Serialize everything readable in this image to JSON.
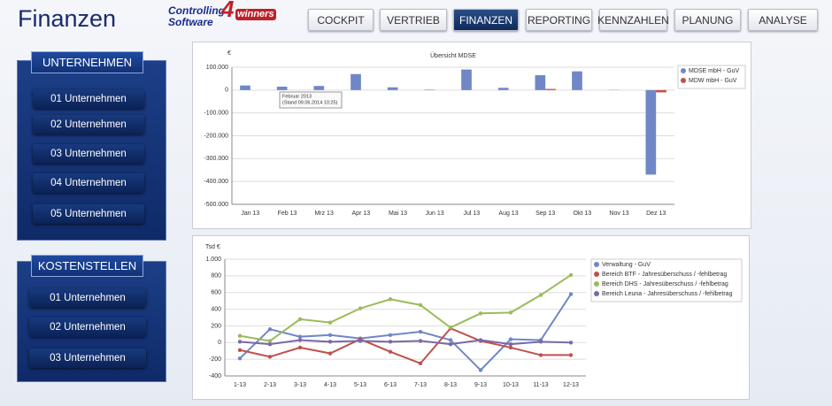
{
  "header": {
    "title": "Finanzen",
    "logo": {
      "line1": "Controlling",
      "line2": "Software",
      "number": "4",
      "suffix": "winners"
    }
  },
  "nav": [
    "COCKPIT",
    "VERTRIEB",
    "FINANZEN",
    "REPORTING",
    "KENNZAHLEN",
    "PLANUNG",
    "ANALYSE"
  ],
  "active_nav": "FINANZEN",
  "panels": [
    {
      "title": "UNTERNEHMEN",
      "items": [
        "01 Unternehmen",
        "02 Unternehmen",
        "03 Unternehmen",
        "04 Unternehmen",
        "05 Unternehmen"
      ]
    },
    {
      "title": "KOSTENSTELLEN",
      "items": [
        "01 Unternehmen",
        "02 Unternehmen",
        "03 Unternehmen"
      ]
    }
  ],
  "chart_data": [
    {
      "type": "bar",
      "title": "Übersicht MDSE",
      "y_label": "€",
      "categories": [
        "Jan 13",
        "Feb 13",
        "Mrz 13",
        "Apr 13",
        "Mai 13",
        "Jun 13",
        "Jul 13",
        "Aug 13",
        "Sep 13",
        "Okt 13",
        "Nov 13",
        "Dez 13"
      ],
      "series": [
        {
          "name": "MDSE mbH - GuV",
          "color": "#6f87c6",
          "values": [
            20000,
            15000,
            18000,
            70000,
            12000,
            2000,
            90000,
            10000,
            65000,
            82000,
            1000,
            -370000
          ]
        },
        {
          "name": "MDW mbH - GuV",
          "color": "#c0504d",
          "values": [
            0,
            0,
            0,
            0,
            0,
            0,
            0,
            0,
            5000,
            0,
            0,
            -10000
          ]
        }
      ],
      "ylim": [
        -500000,
        100000
      ],
      "yticks": [
        {
          "value": 100000,
          "label": "100.000"
        },
        0,
        {
          "value": -100000,
          "label": "-100.000"
        },
        {
          "value": -200000,
          "label": "-200.000"
        },
        {
          "value": -300000,
          "label": "-300.000"
        },
        {
          "value": -400000,
          "label": "-400.000"
        },
        {
          "value": -500000,
          "label": "-500.000"
        }
      ],
      "grid": true,
      "legend": "right",
      "annotations": [
        "Februar 2013",
        "(Stand 09.06.2014 10:25)"
      ]
    },
    {
      "type": "line",
      "y_label": "Tsd €",
      "categories": [
        "1-13",
        "2-13",
        "3-13",
        "4-13",
        "5-13",
        "6-13",
        "7-13",
        "8-13",
        "9-13",
        "10-13",
        "11-13",
        "12-13"
      ],
      "series": [
        {
          "name": "Verwaltung - GuV",
          "color": "#6f87c6",
          "values": [
            -190,
            160,
            70,
            90,
            50,
            90,
            130,
            30,
            -330,
            40,
            30,
            580
          ]
        },
        {
          "name": "Bereich BTF - Jahresüberschuss / -fehlbetrag",
          "color": "#c0504d",
          "values": [
            -90,
            -170,
            -60,
            -130,
            40,
            -110,
            -250,
            170,
            20,
            -60,
            -150,
            -150
          ]
        },
        {
          "name": "Bereich DHS - Jahresüberschuss / -fehlbetrag",
          "color": "#9bbb59",
          "values": [
            80,
            20,
            280,
            240,
            410,
            520,
            450,
            180,
            350,
            360,
            570,
            810
          ]
        },
        {
          "name": "Bereich Leuna - Jahresüberschuss / -fehlbetrag",
          "color": "#7b68a6",
          "values": [
            10,
            -20,
            30,
            10,
            20,
            10,
            20,
            -20,
            30,
            -20,
            10,
            0
          ]
        }
      ],
      "ylim": [
        -400,
        1000
      ],
      "yticks": [
        {
          "value": 1000,
          "label": "1.000"
        },
        800,
        600,
        400,
        200,
        0,
        -200,
        -400
      ],
      "grid": true,
      "legend": "right"
    }
  ]
}
